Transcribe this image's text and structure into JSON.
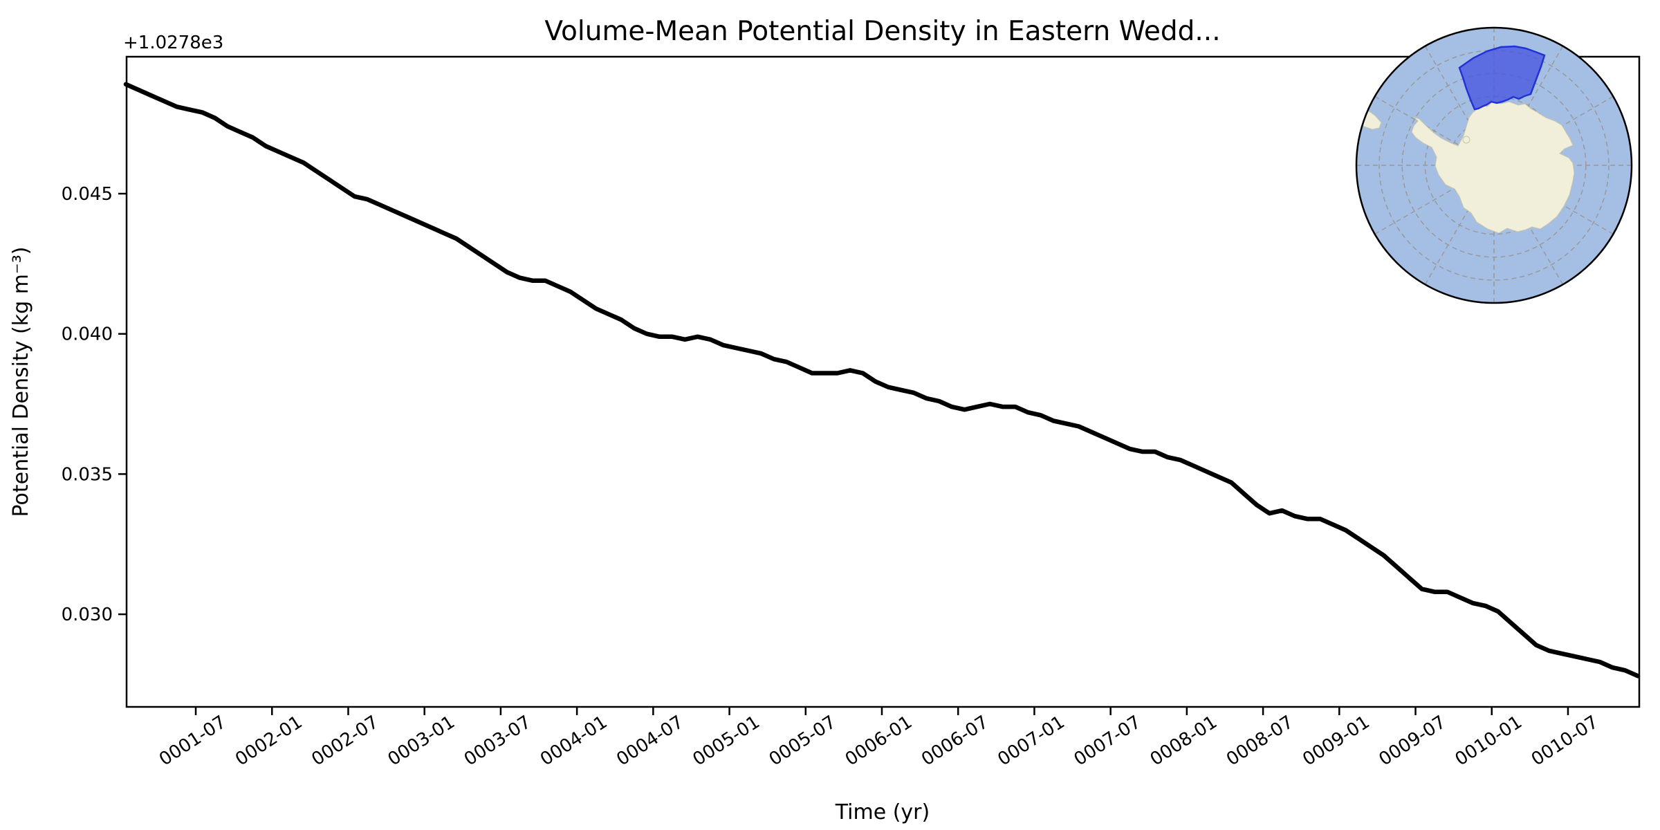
{
  "title": "Volume-Mean Potential Density in Eastern Wedd...",
  "axes": {
    "xlabel": "Time (yr)",
    "ylabel": "Potential Density (kg m⁻³)",
    "y_offset_text": "+1.0278e3",
    "x_tick_labels": [
      "0001-07",
      "0002-01",
      "0002-07",
      "0003-01",
      "0003-07",
      "0004-01",
      "0004-07",
      "0005-01",
      "0005-07",
      "0006-01",
      "0006-07",
      "0007-01",
      "0007-07",
      "0008-01",
      "0008-07",
      "0009-01",
      "0009-07",
      "0010-01",
      "0010-07"
    ],
    "y_tick_labels": [
      "0.030",
      "0.035",
      "0.040",
      "0.045"
    ]
  },
  "chart_data": {
    "type": "line",
    "title": "Volume-Mean Potential Density in Eastern Wedd...",
    "xlabel": "Time (yr)",
    "ylabel": "Potential Density (kg m⁻³)",
    "y_offset_base": 1027.8,
    "ylim_offset_from_base": [
      0.0267,
      0.0499
    ],
    "y_ticks_offset_from_base": [
      0.03,
      0.035,
      0.04,
      0.045
    ],
    "x_tick_labels": [
      "0001-07",
      "0002-01",
      "0002-07",
      "0003-01",
      "0003-07",
      "0004-01",
      "0004-07",
      "0005-01",
      "0005-07",
      "0006-01",
      "0006-07",
      "0007-01",
      "0007-07",
      "0008-01",
      "0008-07",
      "0009-01",
      "0009-07",
      "0010-01",
      "0010-07"
    ],
    "grid": false,
    "legend": null,
    "line_color": "#000000",
    "line_width": 6.5,
    "x_months": [
      "0001-01",
      "0001-02",
      "0001-03",
      "0001-04",
      "0001-05",
      "0001-06",
      "0001-07",
      "0001-08",
      "0001-09",
      "0001-10",
      "0001-11",
      "0001-12",
      "0002-01",
      "0002-02",
      "0002-03",
      "0002-04",
      "0002-05",
      "0002-06",
      "0002-07",
      "0002-08",
      "0002-09",
      "0002-10",
      "0002-11",
      "0002-12",
      "0003-01",
      "0003-02",
      "0003-03",
      "0003-04",
      "0003-05",
      "0003-06",
      "0003-07",
      "0003-08",
      "0003-09",
      "0003-10",
      "0003-11",
      "0003-12",
      "0004-01",
      "0004-02",
      "0004-03",
      "0004-04",
      "0004-05",
      "0004-06",
      "0004-07",
      "0004-08",
      "0004-09",
      "0004-10",
      "0004-11",
      "0004-12",
      "0005-01",
      "0005-02",
      "0005-03",
      "0005-04",
      "0005-05",
      "0005-06",
      "0005-07",
      "0005-08",
      "0005-09",
      "0005-10",
      "0005-11",
      "0005-12",
      "0006-01",
      "0006-02",
      "0006-03",
      "0006-04",
      "0006-05",
      "0006-06",
      "0006-07",
      "0006-08",
      "0006-09",
      "0006-10",
      "0006-11",
      "0006-12",
      "0007-01",
      "0007-02",
      "0007-03",
      "0007-04",
      "0007-05",
      "0007-06",
      "0007-07",
      "0007-08",
      "0007-09",
      "0007-10",
      "0007-11",
      "0007-12",
      "0008-01",
      "0008-02",
      "0008-03",
      "0008-04",
      "0008-05",
      "0008-06",
      "0008-07",
      "0008-08",
      "0008-09",
      "0008-10",
      "0008-11",
      "0008-12",
      "0009-01",
      "0009-02",
      "0009-03",
      "0009-04",
      "0009-05",
      "0009-06",
      "0009-07",
      "0009-08",
      "0009-09",
      "0009-10",
      "0009-11",
      "0009-12",
      "0010-01",
      "0010-02",
      "0010-03",
      "0010-04",
      "0010-05",
      "0010-06",
      "0010-07",
      "0010-08",
      "0010-09",
      "0010-10",
      "0010-11",
      "0010-12"
    ],
    "values_offset_from_base": [
      0.0489,
      0.0487,
      0.0485,
      0.0483,
      0.0481,
      0.048,
      0.0479,
      0.0477,
      0.0474,
      0.0472,
      0.047,
      0.0467,
      0.0465,
      0.0463,
      0.0461,
      0.0458,
      0.0455,
      0.0452,
      0.0449,
      0.0448,
      0.0446,
      0.0444,
      0.0442,
      0.044,
      0.0438,
      0.0436,
      0.0434,
      0.0431,
      0.0428,
      0.0425,
      0.0422,
      0.042,
      0.0419,
      0.0419,
      0.0417,
      0.0415,
      0.0412,
      0.0409,
      0.0407,
      0.0405,
      0.0402,
      0.04,
      0.0399,
      0.0399,
      0.0398,
      0.0399,
      0.0398,
      0.0396,
      0.0395,
      0.0394,
      0.0393,
      0.0391,
      0.039,
      0.0388,
      0.0386,
      0.0386,
      0.0386,
      0.0387,
      0.0386,
      0.0383,
      0.0381,
      0.038,
      0.0379,
      0.0377,
      0.0376,
      0.0374,
      0.0373,
      0.0374,
      0.0375,
      0.0374,
      0.0374,
      0.0372,
      0.0371,
      0.0369,
      0.0368,
      0.0367,
      0.0365,
      0.0363,
      0.0361,
      0.0359,
      0.0358,
      0.0358,
      0.0356,
      0.0355,
      0.0353,
      0.0351,
      0.0349,
      0.0347,
      0.0343,
      0.0339,
      0.0336,
      0.0337,
      0.0335,
      0.0334,
      0.0334,
      0.0332,
      0.033,
      0.0327,
      0.0324,
      0.0321,
      0.0317,
      0.0313,
      0.0309,
      0.0308,
      0.0308,
      0.0306,
      0.0304,
      0.0303,
      0.0301,
      0.0297,
      0.0293,
      0.0289,
      0.0287,
      0.0286,
      0.0285,
      0.0284,
      0.0283,
      0.0281,
      0.028,
      0.0278
    ]
  },
  "inset_map": {
    "type": "south-polar-stereographic",
    "ocean_color": "#a5bfe4",
    "land_color": "#f1eeda",
    "land_edge_color": "#c9c5a8",
    "graticule_color": "#999999",
    "region_fill_color": "#4656e0",
    "region_border_color": "#2233d5",
    "border_color": "#000000"
  }
}
